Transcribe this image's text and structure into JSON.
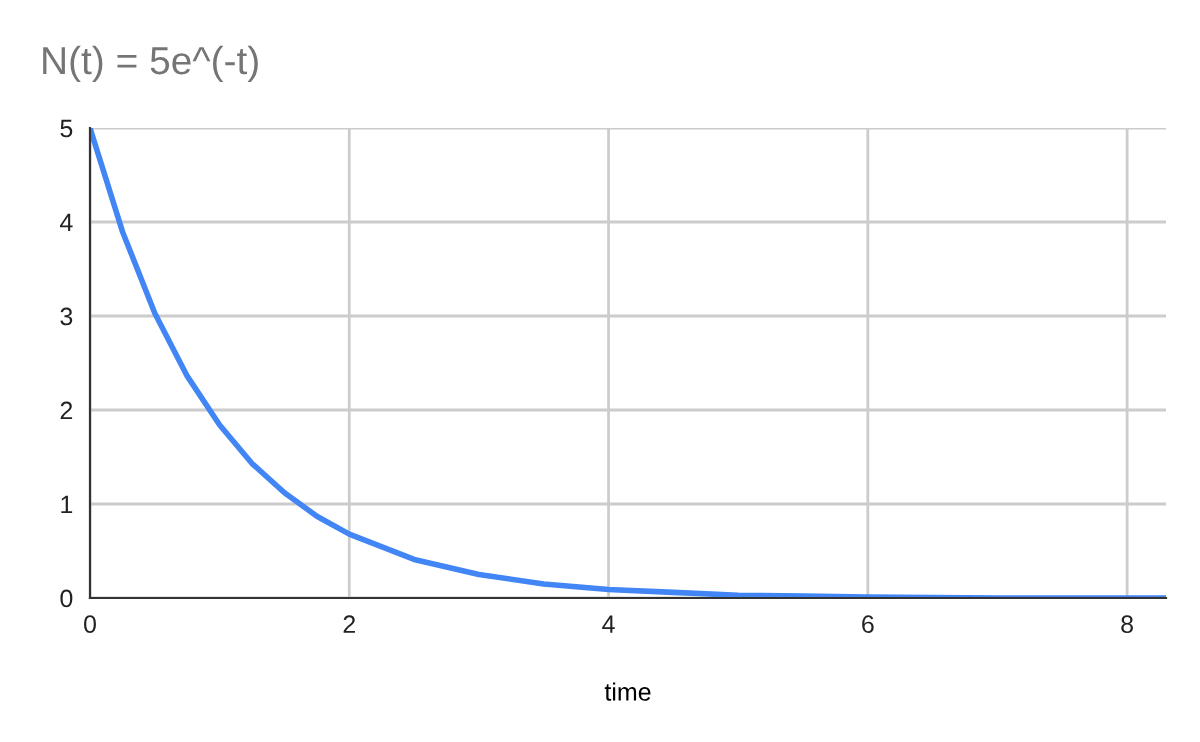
{
  "chart_data": {
    "type": "line",
    "title": "N(t) = 5e^(-t)",
    "xlabel": "time",
    "x": [
      0,
      0.25,
      0.5,
      0.75,
      1,
      1.25,
      1.5,
      1.75,
      2,
      2.5,
      3,
      3.5,
      4,
      4.5,
      5,
      5.5,
      6,
      7,
      8.3
    ],
    "series": [
      {
        "color": "#4285f4",
        "values": [
          5,
          3.9,
          3.03,
          2.36,
          1.84,
          1.43,
          1.12,
          0.87,
          0.68,
          0.41,
          0.25,
          0.15,
          0.09,
          0.06,
          0.03,
          0.02,
          0.01,
          0,
          0
        ]
      }
    ],
    "xlim": [
      0,
      8.3
    ],
    "xticks": [
      0,
      2,
      4,
      6,
      8
    ],
    "ylim": [
      0,
      5
    ],
    "yticks": [
      0,
      1,
      2,
      3,
      4,
      5
    ],
    "grid": true,
    "legend": false,
    "marker": "none",
    "line_style": "solid"
  }
}
